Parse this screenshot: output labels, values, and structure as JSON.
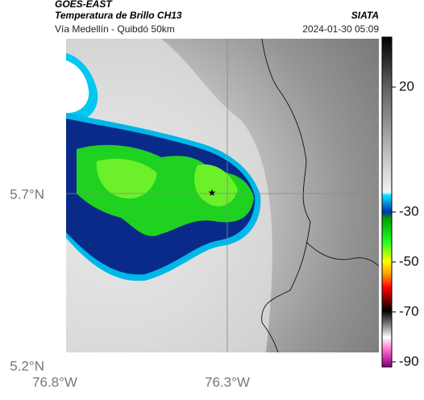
{
  "header": {
    "satellite": "GOES-EAST",
    "title": "Temperatura de Brillo CH13",
    "organization": "SIATA",
    "subtitle": "Vía Medellín - Quibdó 50km",
    "timestamp": "2024-01-30 05:09"
  },
  "axes": {
    "lat_labels": [
      "5.7°N",
      "5.2°N"
    ],
    "lon_labels": [
      "76.8°W",
      "76.3°W"
    ]
  },
  "colorbar": {
    "range": [
      -92,
      40
    ],
    "ticks": [
      20,
      -30,
      -50,
      -70,
      -90
    ]
  }
}
